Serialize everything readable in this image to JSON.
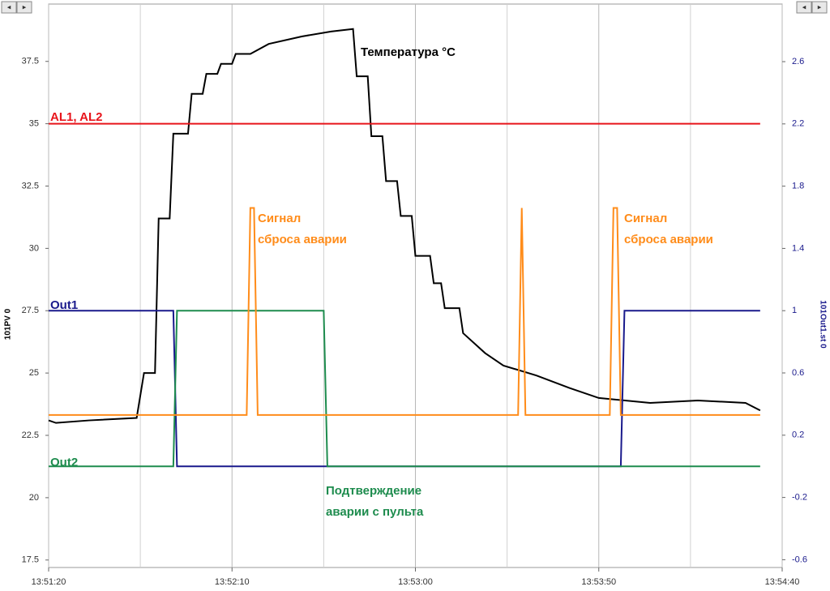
{
  "chart_data": {
    "type": "line",
    "xlim": [
      "13:51:20",
      "13:54:40"
    ],
    "xticks": [
      "13:51:20",
      "13:52:10",
      "13:53:00",
      "13:53:50",
      "13:54:40"
    ],
    "xminorticks": [
      "13:51:45",
      "13:52:35",
      "13:53:25",
      "13:54:15"
    ],
    "ylabel": "101PV 0",
    "y2label": "101Out1.st 0",
    "ylim": [
      17.2,
      39.8
    ],
    "yticks": [
      17.5,
      20,
      22.5,
      25,
      27.5,
      30,
      32.5,
      35,
      37.5
    ],
    "y2lim": [
      -0.65,
      2.97
    ],
    "y2ticks": [
      -0.6,
      -0.2,
      0.2,
      0.6,
      1,
      1.4,
      1.8,
      2.2,
      2.6
    ],
    "grid": "x",
    "series": [
      {
        "name": "Температура °C",
        "color": "#000000",
        "x": [
          "13:51:20",
          "13:51:22",
          "13:51:31",
          "13:51:44",
          "13:51:46",
          "13:51:49",
          "13:51:50",
          "13:51:53",
          "13:51:54",
          "13:51:58",
          "13:51:59",
          "13:52:02",
          "13:52:03",
          "13:52:06",
          "13:52:07",
          "13:52:10",
          "13:52:11",
          "13:52:15",
          "13:52:20",
          "13:52:29",
          "13:52:37",
          "13:52:43",
          "13:52:44",
          "13:52:47",
          "13:52:48",
          "13:52:51",
          "13:52:52",
          "13:52:55",
          "13:52:56",
          "13:52:59",
          "13:53:00",
          "13:53:04",
          "13:53:05",
          "13:53:07",
          "13:53:08",
          "13:53:12",
          "13:53:13",
          "13:53:19",
          "13:53:24",
          "13:53:33",
          "13:53:42",
          "13:53:50",
          "13:54:04",
          "13:54:17",
          "13:54:30",
          "13:54:34"
        ],
        "values": [
          23.1,
          23.0,
          23.1,
          23.2,
          25.0,
          25.0,
          31.2,
          31.2,
          34.6,
          34.6,
          36.2,
          36.2,
          37.0,
          37.0,
          37.4,
          37.4,
          37.8,
          37.8,
          38.2,
          38.5,
          38.7,
          38.8,
          36.9,
          36.9,
          34.5,
          34.5,
          32.7,
          32.7,
          31.3,
          31.3,
          29.7,
          29.7,
          28.6,
          28.6,
          27.6,
          27.6,
          26.6,
          25.8,
          25.3,
          24.9,
          24.4,
          24.0,
          23.8,
          23.9,
          23.8,
          23.5
        ]
      },
      {
        "name": "AL1, AL2",
        "color": "#e8141b",
        "x": [
          "13:51:20",
          "13:54:34"
        ],
        "values": [
          35,
          35
        ]
      },
      {
        "name": "Out1",
        "color": "#1a1a8c",
        "axis": "y2",
        "x": [
          "13:51:20",
          "13:51:54",
          "13:51:55",
          "13:53:56",
          "13:53:57",
          "13:54:34"
        ],
        "values": [
          1,
          1,
          0,
          0,
          1,
          1
        ]
      },
      {
        "name": "Out2",
        "color": "#1e8c4e",
        "axis": "y2",
        "x": [
          "13:51:20",
          "13:51:54",
          "13:51:55",
          "13:52:35",
          "13:52:36",
          "13:54:34"
        ],
        "values": [
          0,
          0,
          1,
          1,
          0,
          0
        ]
      },
      {
        "color": "#ff8c1a",
        "axis": "y2",
        "x": [
          "13:51:20",
          "13:52:14",
          "13:52:15",
          "13:52:16",
          "13:52:17",
          "13:53:28",
          "13:53:29",
          "13:53:30",
          "13:53:53",
          "13:53:54",
          "13:53:55",
          "13:53:56",
          "13:54:34"
        ],
        "values": [
          0.33,
          0.33,
          1.66,
          1.66,
          0.33,
          0.33,
          1.66,
          0.33,
          0.33,
          1.66,
          1.66,
          0.33,
          0.33
        ]
      }
    ],
    "annotations": [
      {
        "lines": [
          "Сигнал",
          "сброса аварии"
        ],
        "color": "#ff8c1a"
      },
      {
        "lines": [
          "Сигнал",
          "сброса аварии"
        ],
        "color": "#ff8c1a"
      },
      {
        "lines": [
          "Подтверждение",
          "аварии с пульта"
        ],
        "color": "#1e8c4e"
      }
    ]
  }
}
